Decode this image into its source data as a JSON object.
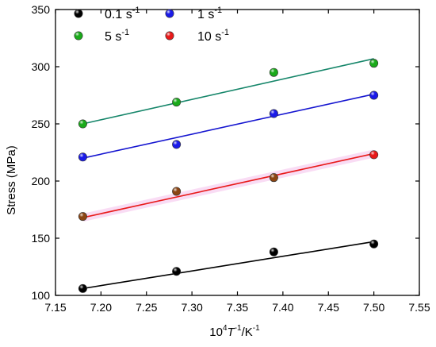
{
  "chart_data": {
    "type": "scatter",
    "xlabel": {
      "base": "10",
      "sup1": "4",
      "T": "T",
      "sup2": "-1",
      "rest": "/K",
      "sup3": "-1"
    },
    "ylabel": "Stress (MPa)",
    "xlim": [
      7.15,
      7.55
    ],
    "ylim": [
      100,
      350
    ],
    "xticks": [
      "7.15",
      "7.20",
      "7.25",
      "7.30",
      "7.35",
      "7.40",
      "7.45",
      "7.50",
      "7.55"
    ],
    "yticks": [
      "100",
      "150",
      "200",
      "250",
      "300",
      "350"
    ],
    "grid": false,
    "legend_position": "top-left",
    "series": [
      {
        "name": "0.1 s",
        "unit_sup": "-1",
        "color": "#000000",
        "marker_color": "#000000",
        "x": [
          7.18,
          7.283,
          7.39,
          7.5
        ],
        "y": [
          106,
          121,
          138,
          145
        ],
        "fit": {
          "x": [
            7.18,
            7.5
          ],
          "y": [
            106,
            147
          ]
        }
      },
      {
        "name": "5 s",
        "unit_sup": "-1",
        "color": "#16866a",
        "marker_color": "#1aaa1a",
        "x": [
          7.18,
          7.283,
          7.39,
          7.5
        ],
        "y": [
          250,
          269,
          295,
          303
        ],
        "fit": {
          "x": [
            7.18,
            7.5
          ],
          "y": [
            250,
            307
          ]
        }
      },
      {
        "name": "1 s",
        "unit_sup": "-1",
        "color": "#1515d0",
        "marker_color": "#1a1ae8",
        "x": [
          7.18,
          7.283,
          7.39,
          7.5
        ],
        "y": [
          221,
          232,
          259,
          275
        ],
        "fit": {
          "x": [
            7.18,
            7.5
          ],
          "y": [
            220,
            276
          ]
        }
      },
      {
        "name": "10 s",
        "unit_sup": "-1",
        "color": "#e81a1a",
        "marker_color": "#e81a1a",
        "x": [
          7.18,
          7.283,
          7.39,
          7.5
        ],
        "y": [
          169,
          191,
          203,
          223
        ],
        "fit": {
          "x": [
            7.18,
            7.5
          ],
          "y": [
            168,
            224
          ]
        }
      }
    ],
    "overlap_color": "#8b4513"
  }
}
